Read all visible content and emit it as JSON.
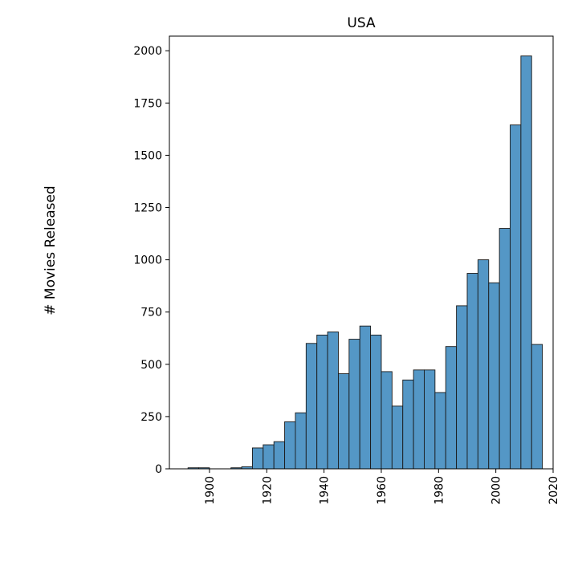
{
  "chart_data": {
    "type": "bar",
    "title": "USA",
    "xlabel": "",
    "ylabel": "# Movies Released",
    "xlim": [
      1886,
      2020
    ],
    "ylim": [
      0,
      2070
    ],
    "x_ticks": [
      1900,
      1920,
      1940,
      1960,
      1980,
      2000,
      2020
    ],
    "y_ticks": [
      0,
      250,
      500,
      750,
      1000,
      1250,
      1500,
      1750,
      2000
    ],
    "bin_width": 3.75,
    "bin_starts": [
      1892.5,
      1896.25,
      1900.0,
      1903.75,
      1907.5,
      1911.25,
      1915.0,
      1918.75,
      1922.5,
      1926.25,
      1930.0,
      1933.75,
      1937.5,
      1941.25,
      1945.0,
      1948.75,
      1952.5,
      1956.25,
      1960.0,
      1963.75,
      1967.5,
      1971.25,
      1975.0,
      1978.75,
      1982.5,
      1986.25,
      1990.0,
      1993.75,
      1997.5,
      2001.25,
      2005.0,
      2008.75,
      2012.5
    ],
    "values": [
      5,
      5,
      0,
      0,
      5,
      10,
      100,
      115,
      130,
      225,
      268,
      600,
      640,
      655,
      455,
      620,
      683,
      640,
      465,
      300,
      425,
      473,
      473,
      365,
      585,
      780,
      935,
      1000,
      890,
      1150,
      1645,
      1975,
      595
    ],
    "bar_color": "#5497c6",
    "edge_color": "#1a1a1a",
    "grid": false
  }
}
